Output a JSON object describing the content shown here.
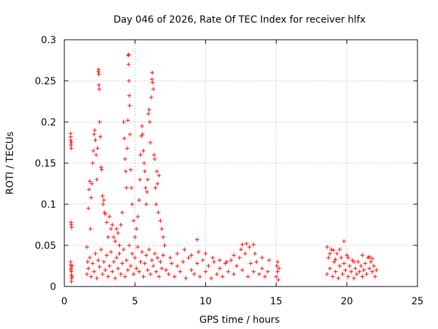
{
  "chart_data": {
    "type": "scatter",
    "title": "Day 046 of 2026, Rate Of TEC Index for receiver hlfx",
    "xlabel": "GPS time / hours",
    "ylabel": "ROTI / TECUs",
    "xlim": [
      0,
      25
    ],
    "ylim": [
      0,
      0.3
    ],
    "xticks": [
      0,
      5,
      10,
      15,
      20,
      25
    ],
    "xtick_labels": [
      "0",
      "5",
      "10",
      "15",
      "20",
      "25"
    ],
    "yticks": [
      0,
      0.05,
      0.1,
      0.15,
      0.2,
      0.25,
      0.3
    ],
    "ytick_labels": [
      "0",
      "0.05",
      "0.1",
      "0.15",
      "0.2",
      "0.25",
      "0.3"
    ],
    "grid": true,
    "marker": "plus",
    "color": "#ff0000",
    "series": [
      {
        "name": "ROTI",
        "points": [
          [
            0.45,
            0.186
          ],
          [
            0.45,
            0.182
          ],
          [
            0.45,
            0.178
          ],
          [
            0.47,
            0.172
          ],
          [
            0.5,
            0.168
          ],
          [
            0.5,
            0.175
          ],
          [
            0.48,
            0.078
          ],
          [
            0.5,
            0.075
          ],
          [
            0.52,
            0.072
          ],
          [
            0.45,
            0.03
          ],
          [
            0.45,
            0.026
          ],
          [
            0.47,
            0.022
          ],
          [
            0.5,
            0.018
          ],
          [
            0.5,
            0.014
          ],
          [
            0.52,
            0.01
          ],
          [
            0.5,
            0.006
          ],
          [
            0.48,
            0.02
          ],
          [
            0.55,
            0.012
          ],
          [
            0.55,
            0.025
          ],
          [
            1.6,
            0.048
          ],
          [
            1.65,
            0.03
          ],
          [
            1.7,
            0.095
          ],
          [
            1.75,
            0.118
          ],
          [
            1.8,
            0.128
          ],
          [
            1.85,
            0.07
          ],
          [
            1.9,
            0.108
          ],
          [
            1.95,
            0.125
          ],
          [
            2.0,
            0.15
          ],
          [
            2.05,
            0.165
          ],
          [
            2.1,
            0.185
          ],
          [
            2.15,
            0.19
          ],
          [
            2.2,
            0.178
          ],
          [
            2.25,
            0.16
          ],
          [
            2.3,
            0.13
          ],
          [
            2.35,
            0.168
          ],
          [
            2.4,
            0.261
          ],
          [
            2.42,
            0.264
          ],
          [
            2.45,
            0.258
          ],
          [
            2.45,
            0.245
          ],
          [
            2.47,
            0.24
          ],
          [
            2.5,
            0.2
          ],
          [
            2.55,
            0.182
          ],
          [
            2.6,
            0.145
          ],
          [
            2.65,
            0.142
          ],
          [
            2.7,
            0.11
          ],
          [
            2.75,
            0.1
          ],
          [
            2.8,
            0.105
          ],
          [
            2.85,
            0.09
          ],
          [
            2.9,
            0.088
          ],
          [
            3.0,
            0.078
          ],
          [
            3.1,
            0.06
          ],
          [
            3.2,
            0.085
          ],
          [
            3.3,
            0.07
          ],
          [
            3.4,
            0.075
          ],
          [
            3.5,
            0.06
          ],
          [
            3.6,
            0.055
          ],
          [
            3.7,
            0.07
          ],
          [
            3.8,
            0.065
          ],
          [
            3.9,
            0.05
          ],
          [
            4.0,
            0.075
          ],
          [
            4.1,
            0.09
          ],
          [
            4.2,
            0.2
          ],
          [
            4.25,
            0.18
          ],
          [
            4.3,
            0.155
          ],
          [
            4.35,
            0.14
          ],
          [
            4.4,
            0.12
          ],
          [
            4.45,
            0.168
          ],
          [
            4.5,
            0.202
          ],
          [
            4.52,
            0.281
          ],
          [
            4.55,
            0.282
          ],
          [
            4.55,
            0.27
          ],
          [
            4.57,
            0.25
          ],
          [
            4.6,
            0.232
          ],
          [
            4.62,
            0.22
          ],
          [
            4.65,
            0.185
          ],
          [
            4.7,
            0.142
          ],
          [
            4.75,
            0.12
          ],
          [
            4.8,
            0.1
          ],
          [
            4.9,
            0.08
          ],
          [
            5.0,
            0.06
          ],
          [
            5.1,
            0.07
          ],
          [
            5.2,
            0.085
          ],
          [
            5.3,
            0.105
          ],
          [
            5.35,
            0.13
          ],
          [
            5.4,
            0.16
          ],
          [
            5.45,
            0.183
          ],
          [
            5.5,
            0.195
          ],
          [
            5.55,
            0.185
          ],
          [
            5.6,
            0.165
          ],
          [
            5.65,
            0.15
          ],
          [
            5.7,
            0.14
          ],
          [
            5.75,
            0.12
          ],
          [
            5.8,
            0.1
          ],
          [
            5.85,
            0.115
          ],
          [
            5.9,
            0.13
          ],
          [
            5.95,
            0.21
          ],
          [
            6.0,
            0.215
          ],
          [
            6.05,
            0.2
          ],
          [
            6.1,
            0.175
          ],
          [
            6.15,
            0.23
          ],
          [
            6.2,
            0.252
          ],
          [
            6.22,
            0.26
          ],
          [
            6.25,
            0.248
          ],
          [
            6.3,
            0.24
          ],
          [
            6.35,
            0.16
          ],
          [
            6.4,
            0.155
          ],
          [
            6.45,
            0.12
          ],
          [
            6.5,
            0.1
          ],
          [
            6.55,
            0.14
          ],
          [
            6.6,
            0.125
          ],
          [
            6.65,
            0.09
          ],
          [
            6.7,
            0.135
          ],
          [
            6.8,
            0.08
          ],
          [
            6.9,
            0.07
          ],
          [
            7.0,
            0.06
          ],
          [
            7.1,
            0.05
          ],
          [
            1.6,
            0.015
          ],
          [
            1.7,
            0.022
          ],
          [
            1.8,
            0.035
          ],
          [
            1.9,
            0.012
          ],
          [
            2.0,
            0.028
          ],
          [
            2.1,
            0.018
          ],
          [
            2.2,
            0.04
          ],
          [
            2.3,
            0.01
          ],
          [
            2.4,
            0.032
          ],
          [
            2.5,
            0.024
          ],
          [
            2.6,
            0.045
          ],
          [
            2.7,
            0.015
          ],
          [
            2.8,
            0.03
          ],
          [
            2.9,
            0.02
          ],
          [
            3.0,
            0.038
          ],
          [
            3.1,
            0.012
          ],
          [
            3.2,
            0.025
          ],
          [
            3.3,
            0.042
          ],
          [
            3.4,
            0.018
          ],
          [
            3.5,
            0.03
          ],
          [
            3.6,
            0.01
          ],
          [
            3.7,
            0.035
          ],
          [
            3.8,
            0.022
          ],
          [
            3.9,
            0.04
          ],
          [
            4.0,
            0.015
          ],
          [
            4.1,
            0.028
          ],
          [
            4.2,
            0.045
          ],
          [
            4.3,
            0.012
          ],
          [
            4.4,
            0.032
          ],
          [
            4.5,
            0.02
          ],
          [
            4.6,
            0.05
          ],
          [
            4.7,
            0.025
          ],
          [
            4.8,
            0.04
          ],
          [
            4.9,
            0.015
          ],
          [
            5.0,
            0.035
          ],
          [
            5.1,
            0.022
          ],
          [
            5.2,
            0.048
          ],
          [
            5.3,
            0.018
          ],
          [
            5.4,
            0.03
          ],
          [
            5.5,
            0.042
          ],
          [
            5.6,
            0.012
          ],
          [
            5.7,
            0.028
          ],
          [
            5.8,
            0.038
          ],
          [
            5.9,
            0.02
          ],
          [
            6.0,
            0.045
          ],
          [
            6.1,
            0.015
          ],
          [
            6.2,
            0.032
          ],
          [
            6.3,
            0.025
          ],
          [
            6.4,
            0.04
          ],
          [
            6.5,
            0.018
          ],
          [
            6.6,
            0.035
          ],
          [
            6.7,
            0.012
          ],
          [
            6.8,
            0.03
          ],
          [
            6.9,
            0.022
          ],
          [
            7.0,
            0.038
          ],
          [
            7.2,
            0.02
          ],
          [
            7.4,
            0.015
          ],
          [
            7.6,
            0.028
          ],
          [
            7.8,
            0.012
          ],
          [
            8.0,
            0.025
          ],
          [
            8.2,
            0.018
          ],
          [
            8.4,
            0.03
          ],
          [
            8.6,
            0.01
          ],
          [
            8.8,
            0.035
          ],
          [
            9.0,
            0.02
          ],
          [
            9.2,
            0.015
          ],
          [
            9.4,
            0.028
          ],
          [
            9.6,
            0.012
          ],
          [
            9.8,
            0.032
          ],
          [
            10.0,
            0.018
          ],
          [
            10.2,
            0.025
          ],
          [
            10.4,
            0.01
          ],
          [
            10.6,
            0.03
          ],
          [
            10.8,
            0.015
          ],
          [
            11.0,
            0.022
          ],
          [
            11.2,
            0.012
          ],
          [
            11.4,
            0.028
          ],
          [
            11.6,
            0.018
          ],
          [
            11.8,
            0.032
          ],
          [
            12.0,
            0.015
          ],
          [
            12.2,
            0.025
          ],
          [
            12.4,
            0.035
          ],
          [
            12.6,
            0.02
          ],
          [
            12.8,
            0.04
          ],
          [
            13.0,
            0.012
          ],
          [
            13.2,
            0.028
          ],
          [
            13.4,
            0.018
          ],
          [
            13.6,
            0.03
          ],
          [
            13.8,
            0.015
          ],
          [
            14.0,
            0.022
          ],
          [
            14.2,
            0.012
          ],
          [
            14.4,
            0.018
          ],
          [
            7.5,
            0.035
          ],
          [
            8.0,
            0.04
          ],
          [
            8.5,
            0.045
          ],
          [
            9.0,
            0.038
          ],
          [
            9.5,
            0.042
          ],
          [
            10.0,
            0.04
          ],
          [
            10.5,
            0.035
          ],
          [
            11.0,
            0.032
          ],
          [
            11.5,
            0.03
          ],
          [
            12.0,
            0.038
          ],
          [
            12.5,
            0.045
          ],
          [
            12.9,
            0.052
          ],
          [
            13.1,
            0.048
          ],
          [
            13.5,
            0.04
          ],
          [
            14.0,
            0.035
          ],
          [
            14.5,
            0.032
          ],
          [
            9.4,
            0.057
          ],
          [
            12.6,
            0.051
          ],
          [
            13.4,
            0.051
          ],
          [
            15.0,
            0.012
          ],
          [
            15.1,
            0.018
          ],
          [
            15.15,
            0.008
          ],
          [
            15.1,
            0.03
          ],
          [
            15.2,
            0.022
          ],
          [
            15.05,
            0.025
          ],
          [
            18.6,
            0.015
          ],
          [
            18.7,
            0.035
          ],
          [
            18.8,
            0.022
          ],
          [
            18.9,
            0.045
          ],
          [
            19.0,
            0.012
          ],
          [
            19.1,
            0.03
          ],
          [
            19.2,
            0.018
          ],
          [
            19.3,
            0.04
          ],
          [
            19.4,
            0.01
          ],
          [
            19.5,
            0.025
          ],
          [
            19.6,
            0.035
          ],
          [
            19.7,
            0.015
          ],
          [
            19.8,
            0.028
          ],
          [
            19.9,
            0.02
          ],
          [
            20.0,
            0.038
          ],
          [
            20.1,
            0.012
          ],
          [
            20.2,
            0.025
          ],
          [
            20.3,
            0.018
          ],
          [
            20.4,
            0.032
          ],
          [
            20.5,
            0.01
          ],
          [
            20.6,
            0.022
          ],
          [
            20.7,
            0.015
          ],
          [
            20.8,
            0.03
          ],
          [
            20.9,
            0.018
          ],
          [
            21.0,
            0.025
          ],
          [
            21.1,
            0.012
          ],
          [
            21.2,
            0.02
          ],
          [
            21.3,
            0.028
          ],
          [
            21.4,
            0.015
          ],
          [
            21.5,
            0.035
          ],
          [
            21.6,
            0.022
          ],
          [
            21.7,
            0.03
          ],
          [
            21.8,
            0.018
          ],
          [
            21.9,
            0.025
          ],
          [
            22.0,
            0.012
          ],
          [
            22.1,
            0.02
          ],
          [
            18.6,
            0.048
          ],
          [
            18.8,
            0.04
          ],
          [
            19.05,
            0.044
          ],
          [
            19.2,
            0.033
          ],
          [
            19.5,
            0.045
          ],
          [
            19.8,
            0.055
          ],
          [
            20.1,
            0.035
          ],
          [
            20.5,
            0.03
          ],
          [
            21.1,
            0.038
          ],
          [
            21.6,
            0.036
          ],
          [
            21.8,
            0.034
          ]
        ]
      }
    ]
  }
}
